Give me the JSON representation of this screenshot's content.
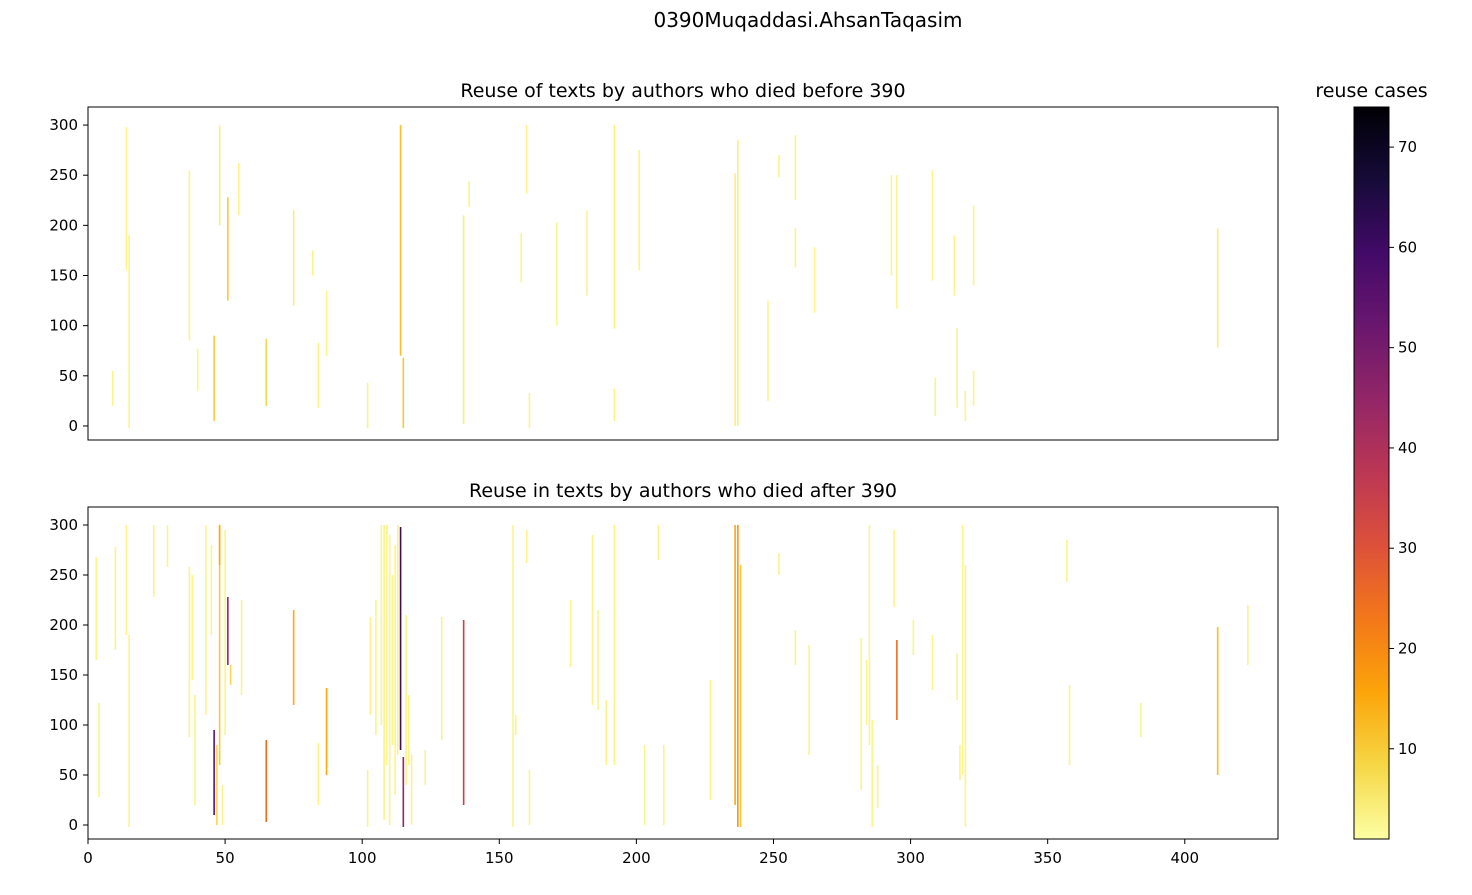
{
  "figure_title": "0390Muqaddasi.AhsanTaqasim",
  "colorbar": {
    "title": "reuse cases",
    "ticks": [
      10,
      20,
      30,
      40,
      50,
      60,
      70
    ],
    "vmin": 1,
    "vmax": 74,
    "colormap": [
      "#fcffa4",
      "#f6d746",
      "#fca50a",
      "#f37819",
      "#dd513a",
      "#bc3754",
      "#932667",
      "#6a176e",
      "#420a68",
      "#160b39",
      "#000004"
    ]
  },
  "chart_data": [
    {
      "type": "heatmap",
      "title": "Reuse of texts by authors who died before 390",
      "xlim": [
        0,
        434
      ],
      "ylim": [
        -14,
        318
      ],
      "yticks": [
        0,
        50,
        100,
        150,
        200,
        250,
        300
      ],
      "show_xticks": false,
      "segments": [
        {
          "x": 9,
          "y0": 20,
          "y1": 55,
          "v": 3
        },
        {
          "x": 14,
          "y0": 155,
          "y1": 298,
          "v": 3
        },
        {
          "x": 15,
          "y0": -2,
          "y1": 190,
          "v": 3
        },
        {
          "x": 37,
          "y0": 85,
          "y1": 255,
          "v": 3
        },
        {
          "x": 40,
          "y0": 35,
          "y1": 77,
          "v": 3
        },
        {
          "x": 46,
          "y0": 5,
          "y1": 90,
          "v": 10
        },
        {
          "x": 48,
          "y0": 200,
          "y1": 300,
          "v": 4
        },
        {
          "x": 51,
          "y0": 125,
          "y1": 228,
          "v": 10
        },
        {
          "x": 55,
          "y0": 210,
          "y1": 262,
          "v": 3
        },
        {
          "x": 65,
          "y0": 20,
          "y1": 87,
          "v": 8
        },
        {
          "x": 75,
          "y0": 120,
          "y1": 215,
          "v": 4
        },
        {
          "x": 82,
          "y0": 150,
          "y1": 175,
          "v": 3
        },
        {
          "x": 84,
          "y0": 18,
          "y1": 83,
          "v": 3
        },
        {
          "x": 87,
          "y0": 70,
          "y1": 135,
          "v": 3
        },
        {
          "x": 102,
          "y0": -2,
          "y1": 43,
          "v": 3
        },
        {
          "x": 114,
          "y0": 70,
          "y1": 300,
          "v": 12
        },
        {
          "x": 115,
          "y0": -2,
          "y1": 68,
          "v": 10
        },
        {
          "x": 137,
          "y0": 2,
          "y1": 210,
          "v": 4
        },
        {
          "x": 139,
          "y0": 218,
          "y1": 244,
          "v": 3
        },
        {
          "x": 158,
          "y0": 143,
          "y1": 192,
          "v": 3
        },
        {
          "x": 160,
          "y0": 232,
          "y1": 300,
          "v": 3
        },
        {
          "x": 161,
          "y0": -2,
          "y1": 33,
          "v": 3
        },
        {
          "x": 171,
          "y0": 100,
          "y1": 203,
          "v": 3
        },
        {
          "x": 182,
          "y0": 130,
          "y1": 215,
          "v": 3
        },
        {
          "x": 192,
          "y0": 5,
          "y1": 37,
          "v": 3
        },
        {
          "x": 192,
          "y0": 97,
          "y1": 300,
          "v": 4
        },
        {
          "x": 201,
          "y0": 155,
          "y1": 275,
          "v": 3
        },
        {
          "x": 236,
          "y0": 0,
          "y1": 252,
          "v": 4
        },
        {
          "x": 237,
          "y0": 0,
          "y1": 285,
          "v": 4
        },
        {
          "x": 248,
          "y0": 25,
          "y1": 125,
          "v": 3
        },
        {
          "x": 252,
          "y0": 248,
          "y1": 270,
          "v": 3
        },
        {
          "x": 258,
          "y0": 225,
          "y1": 290,
          "v": 3
        },
        {
          "x": 258,
          "y0": 158,
          "y1": 197,
          "v": 3
        },
        {
          "x": 265,
          "y0": 113,
          "y1": 178,
          "v": 3
        },
        {
          "x": 293,
          "y0": 150,
          "y1": 250,
          "v": 3
        },
        {
          "x": 295,
          "y0": 117,
          "y1": 250,
          "v": 3
        },
        {
          "x": 308,
          "y0": 145,
          "y1": 255,
          "v": 3
        },
        {
          "x": 309,
          "y0": 10,
          "y1": 48,
          "v": 3
        },
        {
          "x": 316,
          "y0": 130,
          "y1": 190,
          "v": 3
        },
        {
          "x": 317,
          "y0": 18,
          "y1": 98,
          "v": 3
        },
        {
          "x": 320,
          "y0": 5,
          "y1": 35,
          "v": 3
        },
        {
          "x": 323,
          "y0": 140,
          "y1": 220,
          "v": 3
        },
        {
          "x": 323,
          "y0": 20,
          "y1": 55,
          "v": 3
        },
        {
          "x": 412,
          "y0": 78,
          "y1": 197,
          "v": 4
        }
      ]
    },
    {
      "type": "heatmap",
      "title": "Reuse in texts by authors who died after 390",
      "xlim": [
        0,
        434
      ],
      "ylim": [
        -14,
        318
      ],
      "yticks": [
        0,
        50,
        100,
        150,
        200,
        250,
        300
      ],
      "xticks": [
        0,
        50,
        100,
        150,
        200,
        250,
        300,
        350,
        400
      ],
      "show_xticks": true,
      "segments": [
        {
          "x": 3,
          "y0": 165,
          "y1": 268,
          "v": 3
        },
        {
          "x": 4,
          "y0": 28,
          "y1": 122,
          "v": 3
        },
        {
          "x": 10,
          "y0": 175,
          "y1": 278,
          "v": 3
        },
        {
          "x": 14,
          "y0": 190,
          "y1": 300,
          "v": 3
        },
        {
          "x": 15,
          "y0": -2,
          "y1": 190,
          "v": 3
        },
        {
          "x": 24,
          "y0": 228,
          "y1": 300,
          "v": 3
        },
        {
          "x": 29,
          "y0": 258,
          "y1": 300,
          "v": 3
        },
        {
          "x": 37,
          "y0": 88,
          "y1": 258,
          "v": 3
        },
        {
          "x": 38,
          "y0": 145,
          "y1": 250,
          "v": 3
        },
        {
          "x": 39,
          "y0": 20,
          "y1": 130,
          "v": 3
        },
        {
          "x": 43,
          "y0": 110,
          "y1": 300,
          "v": 3
        },
        {
          "x": 45,
          "y0": 190,
          "y1": 280,
          "v": 3
        },
        {
          "x": 46,
          "y0": 10,
          "y1": 95,
          "v": 55
        },
        {
          "x": 47,
          "y0": 0,
          "y1": 80,
          "v": 8
        },
        {
          "x": 48,
          "y0": 60,
          "y1": 300,
          "v": 10
        },
        {
          "x": 48,
          "y0": 260,
          "y1": 300,
          "v": 15
        },
        {
          "x": 49,
          "y0": 0,
          "y1": 40,
          "v": 3
        },
        {
          "x": 50,
          "y0": 90,
          "y1": 295,
          "v": 3
        },
        {
          "x": 51,
          "y0": 160,
          "y1": 228,
          "v": 45
        },
        {
          "x": 52,
          "y0": 140,
          "y1": 160,
          "v": 8
        },
        {
          "x": 56,
          "y0": 130,
          "y1": 225,
          "v": 3
        },
        {
          "x": 65,
          "y0": 3,
          "y1": 85,
          "v": 25
        },
        {
          "x": 75,
          "y0": 120,
          "y1": 215,
          "v": 15
        },
        {
          "x": 84,
          "y0": 20,
          "y1": 82,
          "v": 3
        },
        {
          "x": 87,
          "y0": 50,
          "y1": 137,
          "v": 15
        },
        {
          "x": 102,
          "y0": -2,
          "y1": 55,
          "v": 3
        },
        {
          "x": 103,
          "y0": 110,
          "y1": 208,
          "v": 3
        },
        {
          "x": 105,
          "y0": 90,
          "y1": 225,
          "v": 3
        },
        {
          "x": 107,
          "y0": 100,
          "y1": 300,
          "v": 3
        },
        {
          "x": 108,
          "y0": 5,
          "y1": 300,
          "v": 3
        },
        {
          "x": 109,
          "y0": 60,
          "y1": 300,
          "v": 3
        },
        {
          "x": 110,
          "y0": 0,
          "y1": 290,
          "v": 3
        },
        {
          "x": 111,
          "y0": 80,
          "y1": 250,
          "v": 3
        },
        {
          "x": 112,
          "y0": 30,
          "y1": 280,
          "v": 3
        },
        {
          "x": 113,
          "y0": 70,
          "y1": 300,
          "v": 3
        },
        {
          "x": 114,
          "y0": 75,
          "y1": 298,
          "v": 60
        },
        {
          "x": 115,
          "y0": -2,
          "y1": 68,
          "v": 45
        },
        {
          "x": 116,
          "y0": 40,
          "y1": 210,
          "v": 3
        },
        {
          "x": 117,
          "y0": 60,
          "y1": 130,
          "v": 3
        },
        {
          "x": 118,
          "y0": 0,
          "y1": 70,
          "v": 3
        },
        {
          "x": 123,
          "y0": 40,
          "y1": 75,
          "v": 3
        },
        {
          "x": 129,
          "y0": 85,
          "y1": 208,
          "v": 3
        },
        {
          "x": 137,
          "y0": 20,
          "y1": 205,
          "v": 35
        },
        {
          "x": 155,
          "y0": -2,
          "y1": 300,
          "v": 3
        },
        {
          "x": 156,
          "y0": 90,
          "y1": 110,
          "v": 3
        },
        {
          "x": 160,
          "y0": 262,
          "y1": 295,
          "v": 3
        },
        {
          "x": 161,
          "y0": 0,
          "y1": 55,
          "v": 3
        },
        {
          "x": 176,
          "y0": 158,
          "y1": 225,
          "v": 3
        },
        {
          "x": 184,
          "y0": 120,
          "y1": 290,
          "v": 3
        },
        {
          "x": 186,
          "y0": 115,
          "y1": 215,
          "v": 3
        },
        {
          "x": 189,
          "y0": 60,
          "y1": 125,
          "v": 3
        },
        {
          "x": 192,
          "y0": 60,
          "y1": 300,
          "v": 3
        },
        {
          "x": 203,
          "y0": 0,
          "y1": 80,
          "v": 3
        },
        {
          "x": 208,
          "y0": 265,
          "y1": 300,
          "v": 3
        },
        {
          "x": 210,
          "y0": 0,
          "y1": 80,
          "v": 3
        },
        {
          "x": 227,
          "y0": 25,
          "y1": 145,
          "v": 3
        },
        {
          "x": 236,
          "y0": 20,
          "y1": 300,
          "v": 15
        },
        {
          "x": 237,
          "y0": -2,
          "y1": 300,
          "v": 18
        },
        {
          "x": 238,
          "y0": -2,
          "y1": 260,
          "v": 10
        },
        {
          "x": 252,
          "y0": 250,
          "y1": 272,
          "v": 3
        },
        {
          "x": 258,
          "y0": 160,
          "y1": 195,
          "v": 3
        },
        {
          "x": 263,
          "y0": 70,
          "y1": 180,
          "v": 3
        },
        {
          "x": 282,
          "y0": 35,
          "y1": 187,
          "v": 3
        },
        {
          "x": 284,
          "y0": 100,
          "y1": 165,
          "v": 3
        },
        {
          "x": 285,
          "y0": 80,
          "y1": 300,
          "v": 3
        },
        {
          "x": 286,
          "y0": -2,
          "y1": 105,
          "v": 3
        },
        {
          "x": 288,
          "y0": 17,
          "y1": 60,
          "v": 3
        },
        {
          "x": 294,
          "y0": 218,
          "y1": 295,
          "v": 3
        },
        {
          "x": 295,
          "y0": 105,
          "y1": 185,
          "v": 25
        },
        {
          "x": 301,
          "y0": 170,
          "y1": 205,
          "v": 3
        },
        {
          "x": 308,
          "y0": 135,
          "y1": 190,
          "v": 3
        },
        {
          "x": 317,
          "y0": 125,
          "y1": 172,
          "v": 3
        },
        {
          "x": 318,
          "y0": 45,
          "y1": 80,
          "v": 3
        },
        {
          "x": 319,
          "y0": 50,
          "y1": 300,
          "v": 3
        },
        {
          "x": 320,
          "y0": -2,
          "y1": 260,
          "v": 3
        },
        {
          "x": 357,
          "y0": 243,
          "y1": 285,
          "v": 3
        },
        {
          "x": 358,
          "y0": 60,
          "y1": 140,
          "v": 3
        },
        {
          "x": 384,
          "y0": 88,
          "y1": 122,
          "v": 3
        },
        {
          "x": 412,
          "y0": 50,
          "y1": 198,
          "v": 12
        },
        {
          "x": 423,
          "y0": 160,
          "y1": 220,
          "v": 3
        }
      ]
    }
  ]
}
